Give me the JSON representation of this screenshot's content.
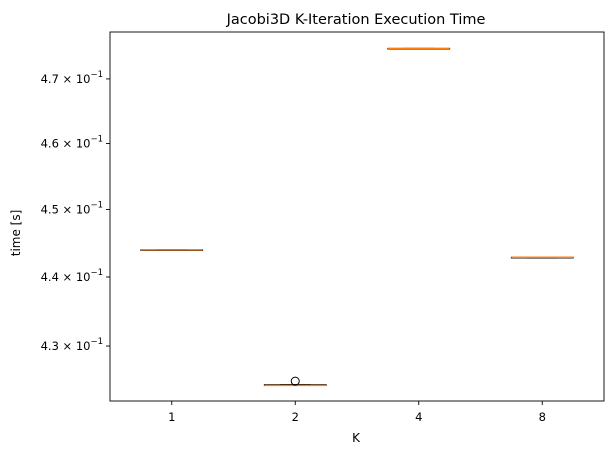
{
  "chart_data": {
    "type": "box",
    "title": "Jacobi3D K-Iteration Execution Time",
    "xlabel": "K",
    "ylabel": "time [s]",
    "yscale": "log",
    "categories": [
      "1",
      "2",
      "4",
      "8"
    ],
    "boxes": [
      {
        "category": "1",
        "min": 0.444,
        "q1": 0.444,
        "median": 0.444,
        "q3": 0.444,
        "max": 0.444,
        "fliers": []
      },
      {
        "category": "2",
        "min": 0.4244,
        "q1": 0.4244,
        "median": 0.4244,
        "q3": 0.4245,
        "max": 0.4245,
        "fliers": [
          0.425
        ]
      },
      {
        "category": "4",
        "min": 0.4747,
        "q1": 0.4747,
        "median": 0.4748,
        "q3": 0.4748,
        "max": 0.4748,
        "fliers": []
      },
      {
        "category": "8",
        "min": 0.4428,
        "q1": 0.4428,
        "median": 0.4429,
        "q3": 0.4429,
        "max": 0.4429,
        "fliers": []
      }
    ],
    "ylim": [
      0.4222,
      0.4774
    ],
    "yticks": [
      {
        "value": 0.43,
        "mantissa": "4.3"
      },
      {
        "value": 0.44,
        "mantissa": "4.4"
      },
      {
        "value": 0.45,
        "mantissa": "4.5"
      },
      {
        "value": 0.46,
        "mantissa": "4.6"
      },
      {
        "value": 0.47,
        "mantissa": "4.7"
      }
    ],
    "tick_base": "10",
    "tick_exponent": "−1",
    "grid": false,
    "colors": {
      "box": "#000000",
      "median": "#ff7f0e",
      "flier": "#000000"
    }
  }
}
